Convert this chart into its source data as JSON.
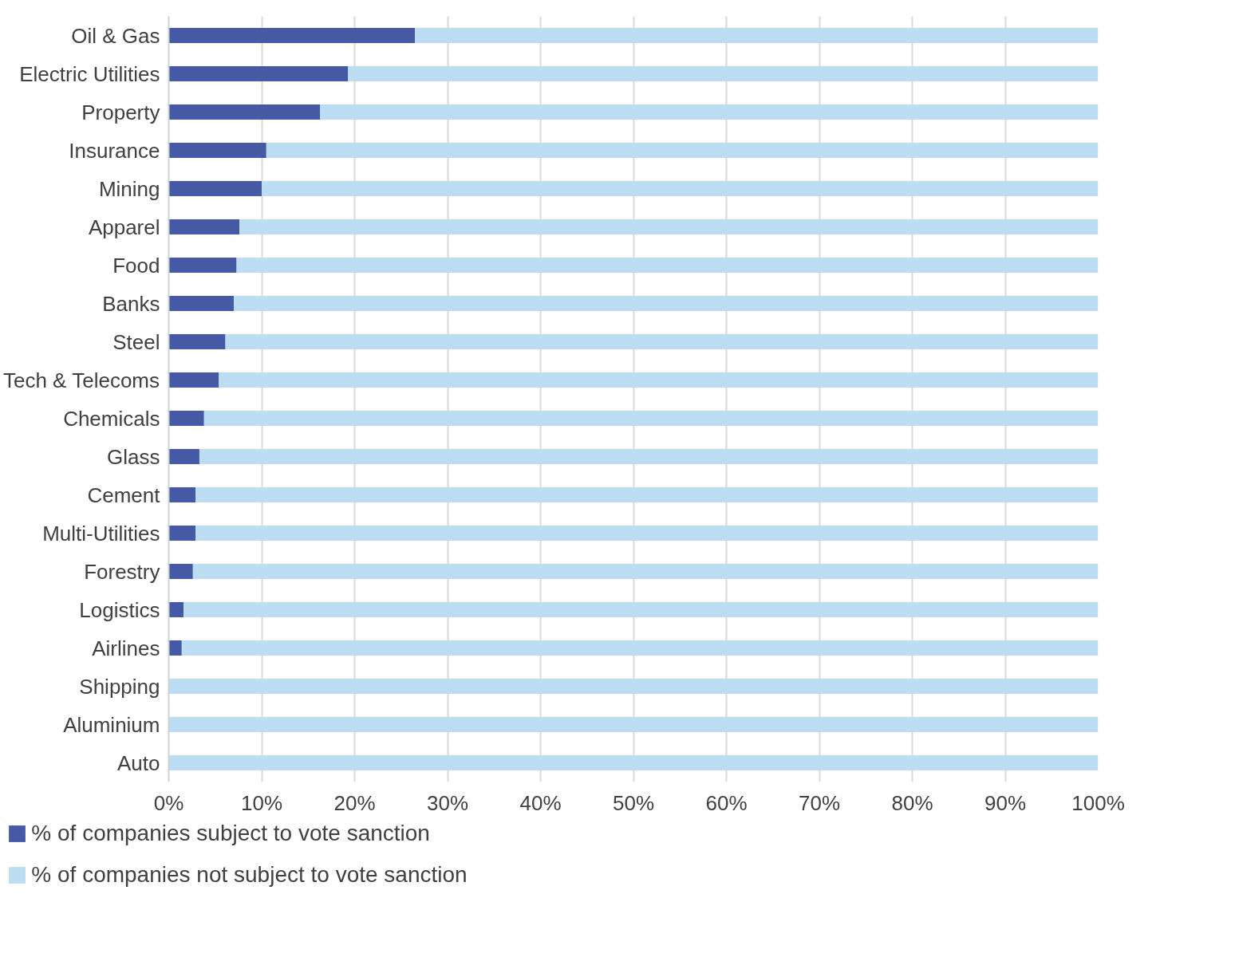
{
  "chart_data": {
    "type": "bar",
    "orientation": "horizontal",
    "stacked": true,
    "categories": [
      "Oil & Gas",
      "Electric Utilities",
      "Property",
      "Insurance",
      "Mining",
      "Apparel",
      "Food",
      "Banks",
      "Steel",
      "Tech & Telecoms",
      "Chemicals",
      "Glass",
      "Cement",
      "Multi-Utilities",
      "Forestry",
      "Logistics",
      "Airlines",
      "Shipping",
      "Aluminium",
      "Auto"
    ],
    "series": [
      {
        "name": "% of companies subject to vote sanction",
        "color": "#4659a4",
        "values": [
          26.5,
          19.3,
          16.3,
          10.5,
          10.0,
          7.6,
          7.3,
          7.0,
          6.1,
          5.4,
          3.8,
          3.3,
          2.9,
          2.9,
          2.6,
          1.6,
          1.4,
          0,
          0,
          0
        ]
      },
      {
        "name": "% of companies not subject to vote sanction",
        "color": "#bdddf2",
        "values": [
          73.5,
          80.7,
          83.7,
          89.5,
          90.0,
          92.4,
          92.7,
          93.0,
          93.9,
          94.6,
          96.2,
          96.7,
          97.1,
          97.1,
          97.4,
          98.4,
          98.6,
          100,
          100,
          100
        ]
      }
    ],
    "xlim": [
      0,
      100
    ],
    "xticks": [
      {
        "value": 0,
        "label": "0%"
      },
      {
        "value": 10,
        "label": "10%"
      },
      {
        "value": 20,
        "label": "20%"
      },
      {
        "value": 30,
        "label": "30%"
      },
      {
        "value": 40,
        "label": "40%"
      },
      {
        "value": 50,
        "label": "50%"
      },
      {
        "value": 60,
        "label": "60%"
      },
      {
        "value": 70,
        "label": "70%"
      },
      {
        "value": 80,
        "label": "80%"
      },
      {
        "value": 90,
        "label": "90%"
      },
      {
        "value": 100,
        "label": "100%"
      }
    ],
    "grid": "x",
    "legend": "bottom"
  }
}
